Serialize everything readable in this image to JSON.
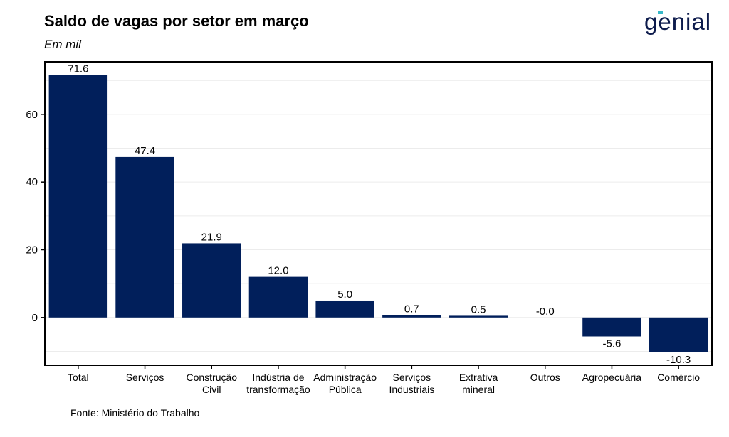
{
  "header": {
    "title": "Saldo de vagas por setor em março",
    "subtitle": "Em mil",
    "logo_text": "genial"
  },
  "footer": {
    "source": "Fonte: Ministério do Trabalho"
  },
  "colors": {
    "bar": "#011f5b",
    "logo": "#0d1b4c",
    "logo_accent": "#37b8c8"
  },
  "chart_data": {
    "type": "bar",
    "categories": [
      [
        "Total"
      ],
      [
        "Serviços"
      ],
      [
        "Construção",
        "Civil"
      ],
      [
        "Indústria de",
        "transformação"
      ],
      [
        "Administração",
        "Pública"
      ],
      [
        "Serviços",
        "Industriais"
      ],
      [
        "Extrativa",
        "mineral"
      ],
      [
        "Outros"
      ],
      [
        "Agropecuária"
      ],
      [
        "Comércio"
      ]
    ],
    "values": [
      71.6,
      47.4,
      21.9,
      12.0,
      5.0,
      0.7,
      0.5,
      -0.0,
      -5.6,
      -10.3
    ],
    "value_labels": [
      "71.6",
      "47.4",
      "21.9",
      "12.0",
      "5.0",
      "0.7",
      "0.5",
      "-0.0",
      "-5.6",
      "-10.3"
    ],
    "yticks": [
      0,
      20,
      40,
      60
    ],
    "ylim": [
      -14.1,
      75.5
    ],
    "grid": true,
    "legend": "none"
  }
}
